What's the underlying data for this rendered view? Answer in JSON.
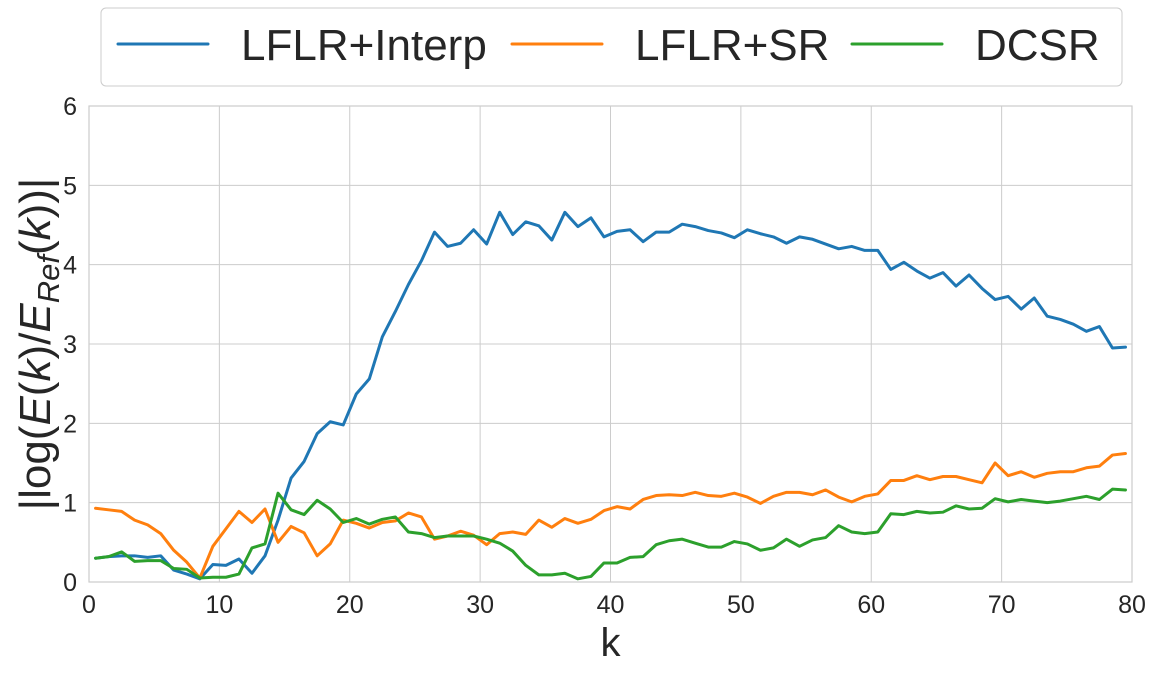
{
  "chart_data": {
    "type": "line",
    "xlabel": "k",
    "ylabel_parts": [
      "|log(",
      "E",
      "(",
      "k",
      ")/",
      "E",
      "Ref",
      "(",
      "k",
      "))|"
    ],
    "xlim": [
      0,
      80
    ],
    "ylim": [
      0,
      6
    ],
    "xticks": [
      "0",
      "10",
      "20",
      "30",
      "40",
      "50",
      "60",
      "70",
      "80"
    ],
    "yticks": [
      "0",
      "1",
      "2",
      "3",
      "4",
      "5",
      "6"
    ],
    "grid": true,
    "legend_position": "top-outside",
    "x": [
      0.5,
      1.5,
      2.5,
      3.5,
      4.5,
      5.5,
      6.5,
      7.5,
      8.5,
      9.5,
      10.5,
      11.5,
      12.5,
      13.5,
      14.5,
      15.5,
      16.5,
      17.5,
      18.5,
      19.5,
      20.5,
      21.5,
      22.5,
      23.5,
      24.5,
      25.5,
      26.5,
      27.5,
      28.5,
      29.5,
      30.5,
      31.5,
      32.5,
      33.5,
      34.5,
      35.5,
      36.5,
      37.5,
      38.5,
      39.5,
      40.5,
      41.5,
      42.5,
      43.5,
      44.5,
      45.5,
      46.5,
      47.5,
      48.5,
      49.5,
      50.5,
      51.5,
      52.5,
      53.5,
      54.5,
      55.5,
      56.5,
      57.5,
      58.5,
      59.5,
      60.5,
      61.5,
      62.5,
      63.5,
      64.5,
      65.5,
      66.5,
      67.5,
      68.5,
      69.5,
      70.5,
      71.5,
      72.5,
      73.5,
      74.5,
      75.5,
      76.5,
      77.5,
      78.5,
      79.5
    ],
    "series": [
      {
        "name": "LFLR+Interp",
        "color": "#1f77b4",
        "values": [
          0.3,
          0.32,
          0.33,
          0.33,
          0.31,
          0.33,
          0.15,
          0.1,
          0.04,
          0.22,
          0.21,
          0.29,
          0.11,
          0.33,
          0.78,
          1.31,
          1.52,
          1.87,
          2.02,
          1.98,
          2.37,
          2.56,
          3.09,
          3.41,
          3.75,
          4.05,
          4.41,
          4.23,
          4.27,
          4.44,
          4.26,
          4.66,
          4.38,
          4.54,
          4.49,
          4.31,
          4.66,
          4.48,
          4.59,
          4.35,
          4.42,
          4.44,
          4.29,
          4.41,
          4.41,
          4.51,
          4.48,
          4.43,
          4.4,
          4.34,
          4.44,
          4.39,
          4.35,
          4.27,
          4.35,
          4.32,
          4.26,
          4.2,
          4.23,
          4.18,
          4.18,
          3.94,
          4.03,
          3.92,
          3.83,
          3.9,
          3.73,
          3.87,
          3.7,
          3.56,
          3.6,
          3.44,
          3.58,
          3.35,
          3.31,
          3.25,
          3.16,
          3.22,
          2.95,
          2.96
        ]
      },
      {
        "name": "LFLR+SR",
        "color": "#ff7f0e",
        "values": [
          0.93,
          0.91,
          0.89,
          0.78,
          0.72,
          0.61,
          0.4,
          0.25,
          0.05,
          0.45,
          0.67,
          0.89,
          0.75,
          0.92,
          0.5,
          0.7,
          0.62,
          0.33,
          0.48,
          0.78,
          0.74,
          0.68,
          0.75,
          0.77,
          0.87,
          0.82,
          0.54,
          0.58,
          0.64,
          0.59,
          0.47,
          0.61,
          0.63,
          0.6,
          0.78,
          0.69,
          0.8,
          0.74,
          0.79,
          0.9,
          0.95,
          0.92,
          1.04,
          1.09,
          1.1,
          1.09,
          1.13,
          1.09,
          1.08,
          1.12,
          1.07,
          0.99,
          1.08,
          1.13,
          1.13,
          1.1,
          1.16,
          1.07,
          1.01,
          1.08,
          1.11,
          1.28,
          1.28,
          1.34,
          1.29,
          1.33,
          1.33,
          1.29,
          1.25,
          1.5,
          1.34,
          1.39,
          1.32,
          1.37,
          1.39,
          1.39,
          1.44,
          1.46,
          1.6,
          1.62
        ]
      },
      {
        "name": "DCSR",
        "color": "#2ca02c",
        "values": [
          0.3,
          0.32,
          0.38,
          0.26,
          0.27,
          0.27,
          0.17,
          0.16,
          0.05,
          0.06,
          0.06,
          0.1,
          0.43,
          0.48,
          1.12,
          0.91,
          0.85,
          1.03,
          0.92,
          0.75,
          0.8,
          0.73,
          0.79,
          0.82,
          0.63,
          0.61,
          0.56,
          0.58,
          0.58,
          0.58,
          0.54,
          0.49,
          0.39,
          0.21,
          0.09,
          0.09,
          0.11,
          0.04,
          0.07,
          0.24,
          0.24,
          0.31,
          0.32,
          0.47,
          0.52,
          0.54,
          0.49,
          0.44,
          0.44,
          0.51,
          0.48,
          0.4,
          0.43,
          0.54,
          0.45,
          0.53,
          0.56,
          0.71,
          0.63,
          0.61,
          0.63,
          0.86,
          0.85,
          0.89,
          0.87,
          0.88,
          0.96,
          0.92,
          0.93,
          1.05,
          1.01,
          1.04,
          1.02,
          1.0,
          1.02,
          1.05,
          1.08,
          1.04,
          1.17,
          1.16
        ]
      }
    ]
  }
}
